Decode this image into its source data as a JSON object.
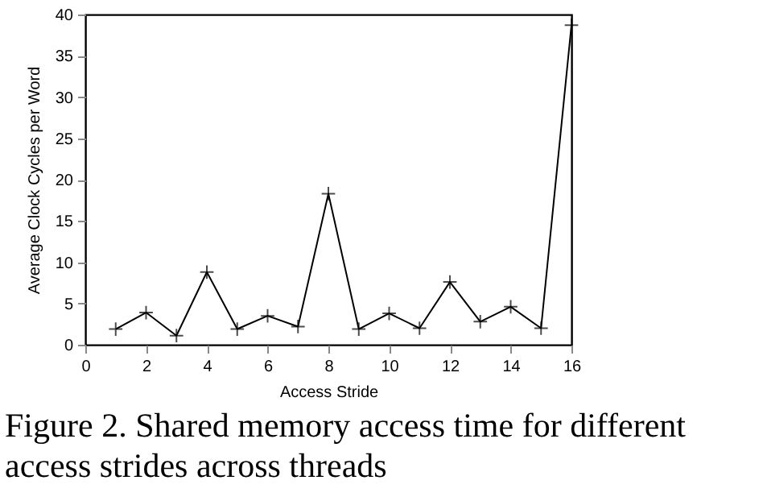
{
  "chart_data": {
    "type": "line",
    "xlabel": "Access Stride",
    "ylabel": "Average Clock Cycles per Word",
    "x": [
      1,
      2,
      3,
      4,
      5,
      6,
      7,
      8,
      9,
      10,
      11,
      12,
      13,
      14,
      15,
      16
    ],
    "series": [
      {
        "color": "#000000",
        "values": [
          1.9,
          3.9,
          1.1,
          8.8,
          1.9,
          3.5,
          2.2,
          18.3,
          1.9,
          3.8,
          2.0,
          7.6,
          2.8,
          4.6,
          2.0,
          38.7
        ]
      }
    ],
    "xlim": [
      0,
      16
    ],
    "xticks": [
      0,
      2,
      4,
      6,
      8,
      10,
      12,
      14,
      16
    ],
    "ylim": [
      0,
      40
    ],
    "yticks": [
      0,
      5,
      10,
      15,
      20,
      25,
      30,
      35,
      40
    ],
    "marker": "cross",
    "line_style": "solid",
    "grid": false,
    "legend": false,
    "annotations": [
      "Figure 2. Shared memory access time for different access strides across threads"
    ]
  }
}
